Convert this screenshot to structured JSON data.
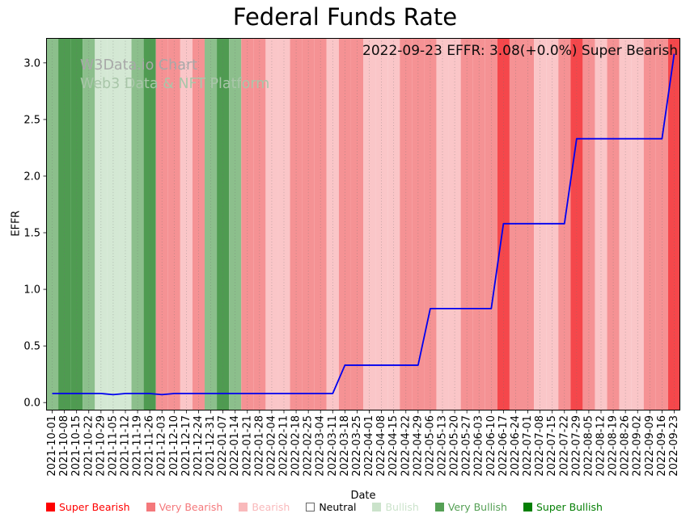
{
  "watermark": {
    "line1": "W3Data.io Chart",
    "line2": "Web3 Data & NFT Platform"
  },
  "annotation": {
    "text": "2022-09-23 EFFR: 3.08(+0.0%) Super Bearish"
  },
  "legend": [
    {
      "label": "Super Bearish",
      "color": "#fe0000",
      "text_color": "#fe0000"
    },
    {
      "label": "Very Bearish",
      "color": "#f4787b",
      "text_color": "#f4787b"
    },
    {
      "label": "Bearish",
      "color": "#f9b9bb",
      "text_color": "#f9b9bb"
    },
    {
      "label": "Neutral",
      "color": "#ffffff",
      "text_color": "#000000"
    },
    {
      "label": "Bullish",
      "color": "#cbe3cb",
      "text_color": "#cbe3cb"
    },
    {
      "label": "Very Bullish",
      "color": "#55a055",
      "text_color": "#55a055"
    },
    {
      "label": "Super Bullish",
      "color": "#057f05",
      "text_color": "#057f05"
    }
  ],
  "chart_data": {
    "type": "line",
    "title": "Federal Funds Rate",
    "xlabel": "Date",
    "ylabel": "EFFR",
    "ylim": [
      -0.07,
      3.22
    ],
    "yticks": [
      0.0,
      0.5,
      1.0,
      1.5,
      2.0,
      2.5,
      3.0
    ],
    "line_color": "#0000f0",
    "grid": "vertical-dotted",
    "legend_position": "bottom",
    "x": [
      "2021-10-01",
      "2021-10-08",
      "2021-10-15",
      "2021-10-22",
      "2021-10-29",
      "2021-11-05",
      "2021-11-12",
      "2021-11-19",
      "2021-11-26",
      "2021-12-03",
      "2021-12-10",
      "2021-12-17",
      "2021-12-24",
      "2021-12-31",
      "2022-01-07",
      "2022-01-14",
      "2022-01-21",
      "2022-01-28",
      "2022-02-04",
      "2022-02-11",
      "2022-02-18",
      "2022-02-25",
      "2022-03-04",
      "2022-03-11",
      "2022-03-18",
      "2022-03-25",
      "2022-04-01",
      "2022-04-08",
      "2022-04-15",
      "2022-04-22",
      "2022-04-29",
      "2022-05-06",
      "2022-05-13",
      "2022-05-20",
      "2022-05-27",
      "2022-06-03",
      "2022-06-10",
      "2022-06-17",
      "2022-06-24",
      "2022-07-01",
      "2022-07-08",
      "2022-07-15",
      "2022-07-22",
      "2022-07-29",
      "2022-08-05",
      "2022-08-12",
      "2022-08-19",
      "2022-08-26",
      "2022-09-02",
      "2022-09-09",
      "2022-09-16",
      "2022-09-23"
    ],
    "values": [
      0.08,
      0.08,
      0.08,
      0.08,
      0.08,
      0.07,
      0.08,
      0.08,
      0.08,
      0.07,
      0.08,
      0.08,
      0.08,
      0.08,
      0.08,
      0.08,
      0.08,
      0.08,
      0.08,
      0.08,
      0.08,
      0.08,
      0.08,
      0.08,
      0.33,
      0.33,
      0.33,
      0.33,
      0.33,
      0.33,
      0.33,
      0.83,
      0.83,
      0.83,
      0.83,
      0.83,
      0.83,
      1.58,
      1.58,
      1.58,
      1.58,
      1.58,
      1.58,
      2.33,
      2.33,
      2.33,
      2.33,
      2.33,
      2.33,
      2.33,
      2.33,
      3.08
    ],
    "sentiment_by_week": [
      "very_bullish",
      "super_bullish",
      "super_bullish",
      "very_bullish",
      "bullish",
      "bullish",
      "bullish",
      "very_bullish",
      "super_bullish",
      "very_bearish",
      "very_bearish",
      "bearish",
      "very_bearish",
      "very_bullish",
      "super_bullish",
      "very_bullish",
      "very_bearish",
      "very_bearish",
      "bearish",
      "bearish",
      "very_bearish",
      "very_bearish",
      "very_bearish",
      "bearish",
      "very_bearish",
      "very_bearish",
      "bearish",
      "bearish",
      "bearish",
      "very_bearish",
      "very_bearish",
      "very_bearish",
      "bearish",
      "bearish",
      "very_bearish",
      "very_bearish",
      "very_bearish",
      "super_bearish",
      "very_bearish",
      "very_bearish",
      "bearish",
      "bearish",
      "very_bearish",
      "super_bearish",
      "very_bearish",
      "bearish",
      "very_bearish",
      "bearish",
      "bearish",
      "very_bearish",
      "very_bearish",
      "super_bearish"
    ],
    "sentiment_colors": {
      "super_bearish": "#f5474b",
      "very_bearish": "#f59294",
      "bearish": "#fac6c8",
      "neutral": "#ffffff",
      "bullish": "#d4e8d4",
      "very_bullish": "#8cbf8c",
      "super_bullish": "#4f9b51"
    }
  }
}
